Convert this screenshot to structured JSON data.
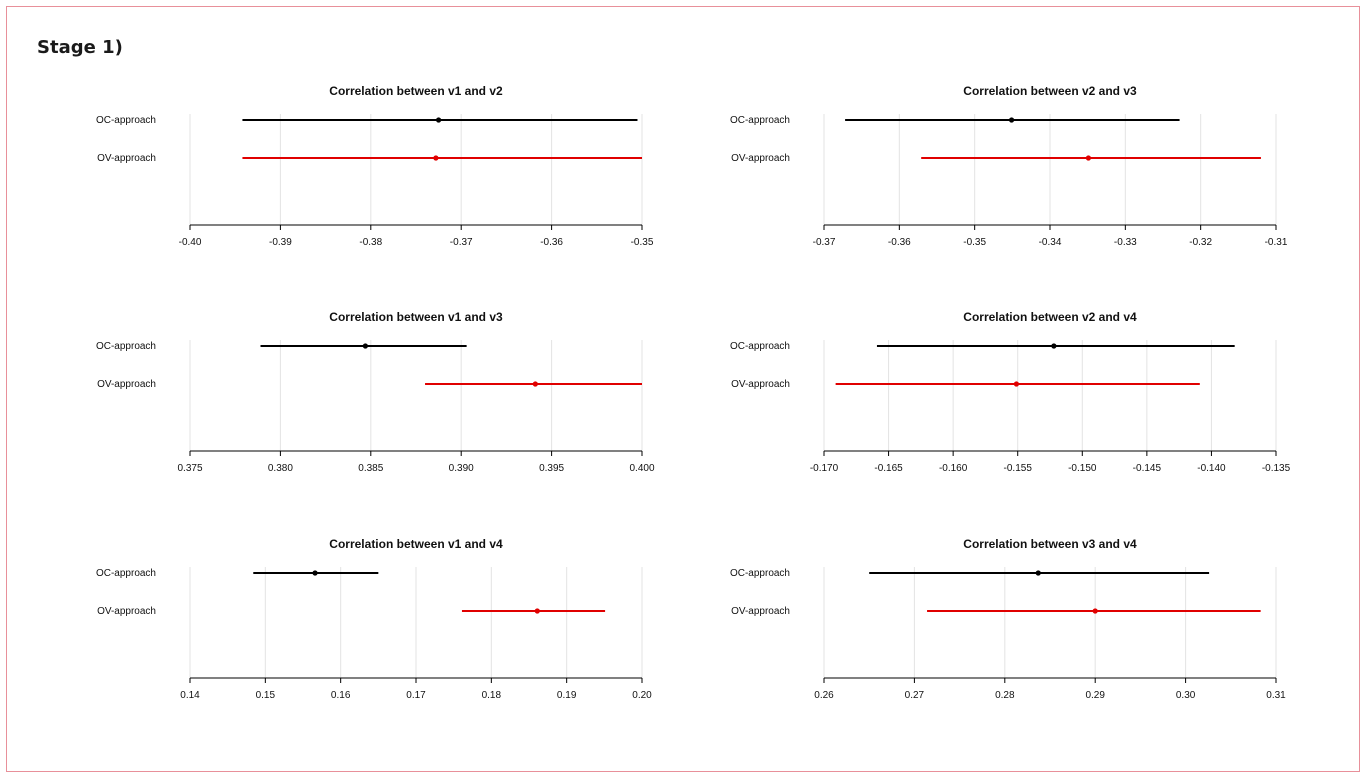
{
  "page": {
    "heading": "Stage 1)"
  },
  "chart_data": [
    {
      "type": "scatter",
      "title": "Correlation between v1 and v2",
      "rows": [
        "OC-approach",
        "OV-approach"
      ],
      "xlim": [
        -0.4,
        -0.35
      ],
      "ticks": [
        "-0.40",
        "-0.39",
        "-0.38",
        "-0.37",
        "-0.36",
        "-0.35"
      ],
      "tick_values": [
        -0.4,
        -0.39,
        -0.38,
        -0.37,
        -0.36,
        -0.35
      ],
      "grid": true,
      "series": [
        {
          "estimate": -0.3725,
          "lower": -0.3942,
          "upper": -0.3505,
          "color": "#000000"
        },
        {
          "estimate": -0.3728,
          "lower": -0.3942,
          "upper": -0.35,
          "color": "#e00000"
        }
      ]
    },
    {
      "type": "scatter",
      "title": "Correlation between v2 and v3",
      "rows": [
        "OC-approach",
        "OV-approach"
      ],
      "xlim": [
        -0.37,
        -0.31
      ],
      "ticks": [
        "-0.37",
        "-0.36",
        "-0.35",
        "-0.34",
        "-0.33",
        "-0.32",
        "-0.31"
      ],
      "tick_values": [
        -0.37,
        -0.36,
        -0.35,
        -0.34,
        -0.33,
        -0.32,
        -0.31
      ],
      "grid": true,
      "series": [
        {
          "estimate": -0.3451,
          "lower": -0.3672,
          "upper": -0.3228,
          "color": "#000000"
        },
        {
          "estimate": -0.3349,
          "lower": -0.3571,
          "upper": -0.312,
          "color": "#e00000"
        }
      ]
    },
    {
      "type": "scatter",
      "title": "Correlation between v1 and v3",
      "rows": [
        "OC-approach",
        "OV-approach"
      ],
      "xlim": [
        0.375,
        0.4
      ],
      "ticks": [
        "0.375",
        "0.380",
        "0.385",
        "0.390",
        "0.395",
        "0.400"
      ],
      "tick_values": [
        0.375,
        0.38,
        0.385,
        0.39,
        0.395,
        0.4
      ],
      "grid": true,
      "series": [
        {
          "estimate": 0.3847,
          "lower": 0.3789,
          "upper": 0.3903,
          "color": "#000000"
        },
        {
          "estimate": 0.3941,
          "lower": 0.388,
          "upper": 0.4,
          "color": "#e00000"
        }
      ]
    },
    {
      "type": "scatter",
      "title": "Correlation between v2 and v4",
      "rows": [
        "OC-approach",
        "OV-approach"
      ],
      "xlim": [
        -0.17,
        -0.135
      ],
      "ticks": [
        "-0.170",
        "-0.165",
        "-0.160",
        "-0.155",
        "-0.150",
        "-0.145",
        "-0.140",
        "-0.135"
      ],
      "tick_values": [
        -0.17,
        -0.165,
        -0.16,
        -0.155,
        -0.15,
        -0.145,
        -0.14,
        -0.135
      ],
      "grid": true,
      "series": [
        {
          "estimate": -0.1522,
          "lower": -0.1659,
          "upper": -0.1382,
          "color": "#000000"
        },
        {
          "estimate": -0.1551,
          "lower": -0.1691,
          "upper": -0.1409,
          "color": "#e00000"
        }
      ]
    },
    {
      "type": "scatter",
      "title": "Correlation between v1 and v4",
      "rows": [
        "OC-approach",
        "OV-approach"
      ],
      "xlim": [
        0.14,
        0.2
      ],
      "ticks": [
        "0.14",
        "0.15",
        "0.16",
        "0.17",
        "0.18",
        "0.19",
        "0.20"
      ],
      "tick_values": [
        0.14,
        0.15,
        0.16,
        0.17,
        0.18,
        0.19,
        0.2
      ],
      "grid": true,
      "series": [
        {
          "estimate": 0.1566,
          "lower": 0.1484,
          "upper": 0.165,
          "color": "#000000"
        },
        {
          "estimate": 0.1861,
          "lower": 0.1761,
          "upper": 0.1951,
          "color": "#e00000"
        }
      ]
    },
    {
      "type": "scatter",
      "title": "Correlation between v3 and v4",
      "rows": [
        "OC-approach",
        "OV-approach"
      ],
      "xlim": [
        0.26,
        0.31
      ],
      "ticks": [
        "0.26",
        "0.27",
        "0.28",
        "0.29",
        "0.30",
        "0.31"
      ],
      "tick_values": [
        0.26,
        0.27,
        0.28,
        0.29,
        0.3,
        0.31
      ],
      "grid": true,
      "series": [
        {
          "estimate": 0.2837,
          "lower": 0.265,
          "upper": 0.3026,
          "color": "#000000"
        },
        {
          "estimate": 0.29,
          "lower": 0.2714,
          "upper": 0.3083,
          "color": "#e00000"
        }
      ]
    }
  ]
}
